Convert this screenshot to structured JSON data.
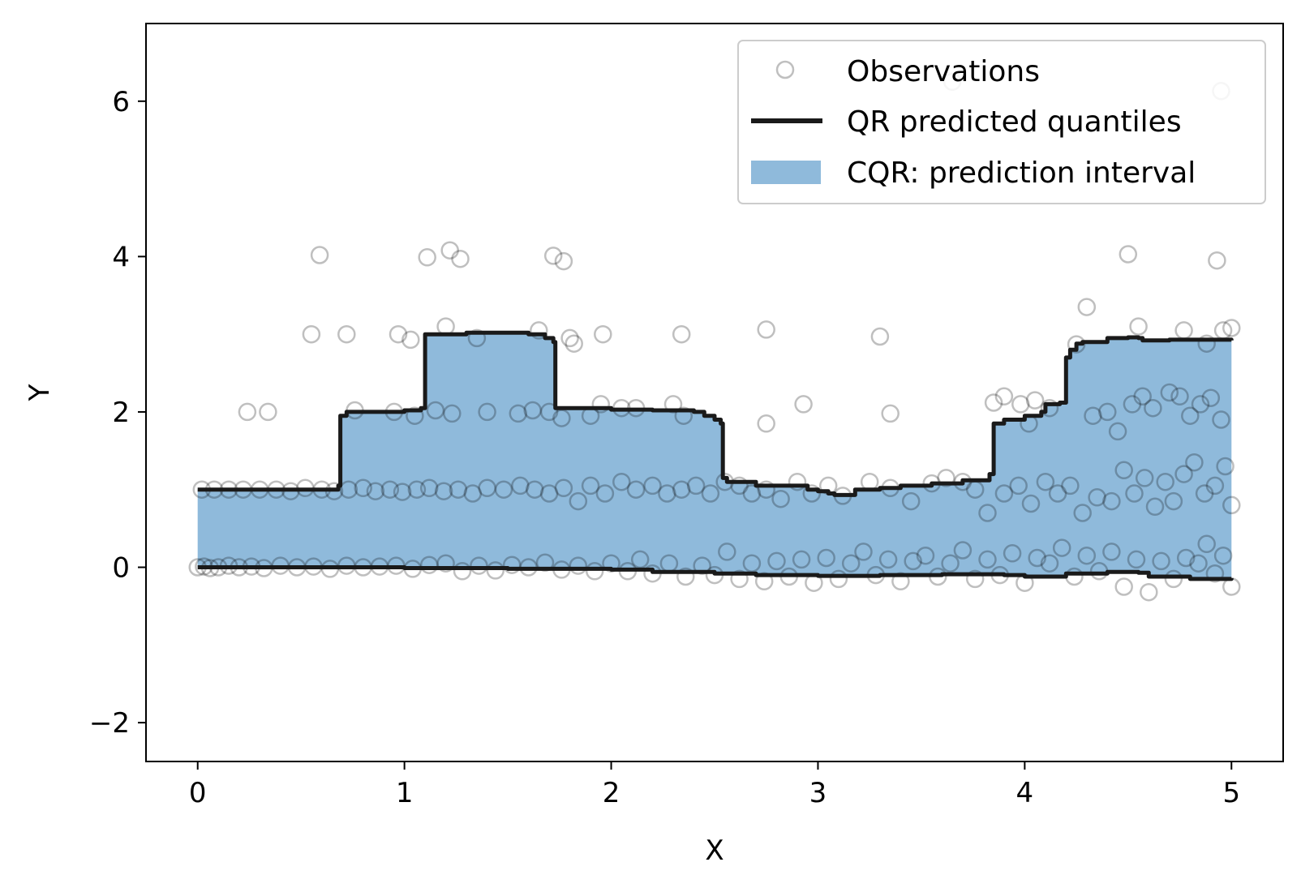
{
  "chart_data": {
    "type": "scatter",
    "xlabel": "X",
    "ylabel": "Y",
    "xlim": [
      -0.25,
      5.25
    ],
    "ylim": [
      -2.5,
      7.0
    ],
    "xticks": [
      0,
      1,
      2,
      3,
      4,
      5
    ],
    "yticks": [
      -2,
      0,
      2,
      4,
      6
    ],
    "xtick_labels": [
      "0",
      "1",
      "2",
      "3",
      "4",
      "5"
    ],
    "ytick_labels": [
      "−2",
      "0",
      "2",
      "4",
      "6"
    ],
    "grid": false,
    "legend_position": "top-right",
    "legend": [
      {
        "label": "Observations",
        "kind": "marker"
      },
      {
        "label": "QR predicted quantiles",
        "kind": "line"
      },
      {
        "label": "CQR: prediction interval",
        "kind": "patch"
      }
    ],
    "colors": {
      "interval": "#8fbadb",
      "line": "#1a1a1a",
      "marker": "#000000"
    },
    "upper_quantile": [
      [
        0,
        1.0
      ],
      [
        0.68,
        1.05
      ],
      [
        0.69,
        1.95
      ],
      [
        0.72,
        2.0
      ],
      [
        1.0,
        2.02
      ],
      [
        1.08,
        2.05
      ],
      [
        1.1,
        3.0
      ],
      [
        1.3,
        3.02
      ],
      [
        1.6,
        3.0
      ],
      [
        1.68,
        2.95
      ],
      [
        1.72,
        2.9
      ],
      [
        1.73,
        2.05
      ],
      [
        2.0,
        2.03
      ],
      [
        2.2,
        2.02
      ],
      [
        2.4,
        2.0
      ],
      [
        2.45,
        1.95
      ],
      [
        2.5,
        1.9
      ],
      [
        2.53,
        1.85
      ],
      [
        2.54,
        1.15
      ],
      [
        2.56,
        1.1
      ],
      [
        2.7,
        1.05
      ],
      [
        2.85,
        1.05
      ],
      [
        2.95,
        1.0
      ],
      [
        3.0,
        0.98
      ],
      [
        3.05,
        0.95
      ],
      [
        3.08,
        0.93
      ],
      [
        3.15,
        0.93
      ],
      [
        3.18,
        1.0
      ],
      [
        3.3,
        1.02
      ],
      [
        3.4,
        1.05
      ],
      [
        3.55,
        1.08
      ],
      [
        3.7,
        1.12
      ],
      [
        3.8,
        1.12
      ],
      [
        3.83,
        1.2
      ],
      [
        3.85,
        1.85
      ],
      [
        3.9,
        1.9
      ],
      [
        4.0,
        1.95
      ],
      [
        4.08,
        2.0
      ],
      [
        4.1,
        2.1
      ],
      [
        4.17,
        2.12
      ],
      [
        4.2,
        2.7
      ],
      [
        4.22,
        2.8
      ],
      [
        4.25,
        2.88
      ],
      [
        4.28,
        2.9
      ],
      [
        4.4,
        2.95
      ],
      [
        4.5,
        2.96
      ],
      [
        4.55,
        2.95
      ],
      [
        4.57,
        2.92
      ],
      [
        4.7,
        2.93
      ],
      [
        5.0,
        2.92
      ]
    ],
    "lower_quantile": [
      [
        0,
        0.0
      ],
      [
        0.5,
        0.0
      ],
      [
        1.0,
        -0.01
      ],
      [
        1.5,
        -0.02
      ],
      [
        2.0,
        -0.03
      ],
      [
        2.2,
        -0.06
      ],
      [
        2.5,
        -0.08
      ],
      [
        2.7,
        -0.1
      ],
      [
        3.0,
        -0.11
      ],
      [
        3.3,
        -0.1
      ],
      [
        3.6,
        -0.09
      ],
      [
        3.9,
        -0.1
      ],
      [
        4.0,
        -0.12
      ],
      [
        4.2,
        -0.08
      ],
      [
        4.4,
        -0.06
      ],
      [
        4.55,
        -0.07
      ],
      [
        4.6,
        -0.12
      ],
      [
        4.8,
        -0.15
      ],
      [
        5.0,
        -0.14
      ]
    ],
    "observations": [
      [
        0.59,
        4.02
      ],
      [
        1.11,
        3.99
      ],
      [
        1.22,
        4.08
      ],
      [
        1.27,
        3.97
      ],
      [
        1.72,
        4.01
      ],
      [
        1.77,
        3.94
      ],
      [
        4.5,
        4.03
      ],
      [
        4.93,
        3.95
      ],
      [
        3.65,
        6.25
      ],
      [
        4.95,
        6.13
      ],
      [
        0.55,
        3.0
      ],
      [
        0.72,
        3.0
      ],
      [
        0.97,
        3.0
      ],
      [
        1.03,
        2.93
      ],
      [
        1.2,
        3.1
      ],
      [
        1.35,
        2.95
      ],
      [
        1.65,
        3.05
      ],
      [
        1.8,
        2.95
      ],
      [
        1.82,
        2.88
      ],
      [
        1.96,
        3.0
      ],
      [
        2.34,
        3.0
      ],
      [
        2.75,
        3.06
      ],
      [
        3.3,
        2.97
      ],
      [
        4.25,
        2.87
      ],
      [
        4.3,
        3.35
      ],
      [
        4.55,
        3.1
      ],
      [
        4.77,
        3.05
      ],
      [
        4.96,
        3.05
      ],
      [
        5.0,
        3.08
      ],
      [
        4.88,
        2.88
      ],
      [
        0.24,
        2.0
      ],
      [
        0.34,
        2.0
      ],
      [
        0.76,
        2.02
      ],
      [
        0.95,
        2.0
      ],
      [
        1.05,
        1.95
      ],
      [
        1.15,
        2.02
      ],
      [
        1.23,
        1.98
      ],
      [
        1.4,
        2.0
      ],
      [
        1.55,
        1.98
      ],
      [
        1.62,
        2.02
      ],
      [
        1.7,
        2.0
      ],
      [
        1.76,
        1.92
      ],
      [
        1.9,
        1.95
      ],
      [
        1.95,
        2.1
      ],
      [
        2.05,
        2.05
      ],
      [
        2.12,
        2.05
      ],
      [
        2.3,
        2.1
      ],
      [
        2.35,
        1.95
      ],
      [
        2.75,
        1.85
      ],
      [
        2.93,
        2.1
      ],
      [
        3.35,
        1.98
      ],
      [
        3.85,
        2.12
      ],
      [
        3.9,
        2.2
      ],
      [
        3.98,
        2.1
      ],
      [
        4.05,
        2.15
      ],
      [
        4.02,
        1.85
      ],
      [
        4.12,
        2.05
      ],
      [
        4.33,
        1.95
      ],
      [
        4.4,
        2.0
      ],
      [
        4.45,
        1.75
      ],
      [
        4.52,
        2.1
      ],
      [
        4.57,
        2.2
      ],
      [
        4.62,
        2.05
      ],
      [
        4.7,
        2.25
      ],
      [
        4.75,
        2.2
      ],
      [
        4.8,
        1.95
      ],
      [
        4.85,
        2.1
      ],
      [
        4.9,
        2.18
      ],
      [
        4.95,
        1.9
      ],
      [
        0.02,
        1.0
      ],
      [
        0.08,
        1.0
      ],
      [
        0.15,
        1.0
      ],
      [
        0.22,
        1.0
      ],
      [
        0.3,
        1.0
      ],
      [
        0.38,
        1.0
      ],
      [
        0.45,
        0.98
      ],
      [
        0.52,
        1.02
      ],
      [
        0.6,
        1.0
      ],
      [
        0.66,
        0.98
      ],
      [
        0.73,
        1.0
      ],
      [
        0.8,
        1.02
      ],
      [
        0.86,
        0.98
      ],
      [
        0.93,
        1.0
      ],
      [
        0.99,
        0.97
      ],
      [
        1.06,
        1.0
      ],
      [
        1.12,
        1.02
      ],
      [
        1.19,
        0.98
      ],
      [
        1.26,
        1.0
      ],
      [
        1.33,
        0.95
      ],
      [
        1.4,
        1.02
      ],
      [
        1.48,
        1.0
      ],
      [
        1.56,
        1.05
      ],
      [
        1.63,
        1.0
      ],
      [
        1.7,
        0.95
      ],
      [
        1.77,
        1.02
      ],
      [
        1.84,
        0.85
      ],
      [
        1.9,
        1.05
      ],
      [
        1.97,
        0.95
      ],
      [
        2.05,
        1.1
      ],
      [
        2.12,
        1.0
      ],
      [
        2.2,
        1.05
      ],
      [
        2.27,
        0.95
      ],
      [
        2.34,
        1.0
      ],
      [
        2.41,
        1.05
      ],
      [
        2.48,
        0.95
      ],
      [
        2.55,
        1.1
      ],
      [
        2.62,
        1.05
      ],
      [
        2.68,
        0.95
      ],
      [
        2.75,
        1.0
      ],
      [
        2.82,
        0.88
      ],
      [
        2.9,
        1.1
      ],
      [
        2.97,
        0.95
      ],
      [
        3.05,
        1.05
      ],
      [
        3.12,
        0.92
      ],
      [
        3.25,
        1.1
      ],
      [
        3.35,
        1.02
      ],
      [
        3.45,
        0.85
      ],
      [
        3.55,
        1.08
      ],
      [
        3.62,
        1.15
      ],
      [
        3.7,
        1.1
      ],
      [
        3.76,
        1.0
      ],
      [
        3.82,
        0.7
      ],
      [
        3.9,
        0.95
      ],
      [
        3.97,
        1.05
      ],
      [
        4.03,
        0.82
      ],
      [
        4.1,
        1.1
      ],
      [
        4.16,
        0.95
      ],
      [
        4.22,
        1.05
      ],
      [
        4.28,
        0.7
      ],
      [
        4.35,
        0.9
      ],
      [
        4.42,
        0.85
      ],
      [
        4.48,
        1.25
      ],
      [
        4.53,
        0.95
      ],
      [
        4.58,
        1.15
      ],
      [
        4.63,
        0.78
      ],
      [
        4.68,
        1.1
      ],
      [
        4.72,
        0.85
      ],
      [
        4.77,
        1.2
      ],
      [
        4.82,
        1.35
      ],
      [
        4.87,
        0.95
      ],
      [
        4.92,
        1.05
      ],
      [
        4.97,
        1.3
      ],
      [
        5.0,
        0.8
      ],
      [
        0.0,
        0.0
      ],
      [
        0.03,
        0.01
      ],
      [
        0.06,
        -0.01
      ],
      [
        0.1,
        0.0
      ],
      [
        0.15,
        0.02
      ],
      [
        0.2,
        0.0
      ],
      [
        0.26,
        0.01
      ],
      [
        0.32,
        -0.01
      ],
      [
        0.4,
        0.02
      ],
      [
        0.48,
        0.0
      ],
      [
        0.56,
        0.01
      ],
      [
        0.64,
        -0.02
      ],
      [
        0.72,
        0.02
      ],
      [
        0.8,
        0.0
      ],
      [
        0.88,
        0.01
      ],
      [
        0.96,
        0.02
      ],
      [
        1.04,
        -0.02
      ],
      [
        1.12,
        0.03
      ],
      [
        1.2,
        0.05
      ],
      [
        1.28,
        -0.05
      ],
      [
        1.36,
        0.02
      ],
      [
        1.44,
        -0.04
      ],
      [
        1.52,
        0.03
      ],
      [
        1.6,
        0.0
      ],
      [
        1.68,
        0.06
      ],
      [
        1.76,
        -0.03
      ],
      [
        1.84,
        0.02
      ],
      [
        1.92,
        -0.05
      ],
      [
        2.0,
        0.05
      ],
      [
        2.08,
        -0.05
      ],
      [
        2.14,
        0.1
      ],
      [
        2.2,
        -0.08
      ],
      [
        2.28,
        0.05
      ],
      [
        2.36,
        -0.12
      ],
      [
        2.44,
        0.02
      ],
      [
        2.5,
        -0.1
      ],
      [
        2.56,
        0.2
      ],
      [
        2.62,
        -0.15
      ],
      [
        2.68,
        0.05
      ],
      [
        2.74,
        -0.18
      ],
      [
        2.8,
        0.08
      ],
      [
        2.86,
        -0.12
      ],
      [
        2.92,
        0.1
      ],
      [
        2.98,
        -0.2
      ],
      [
        3.04,
        0.12
      ],
      [
        3.1,
        -0.15
      ],
      [
        3.16,
        0.05
      ],
      [
        3.22,
        0.2
      ],
      [
        3.28,
        -0.1
      ],
      [
        3.34,
        0.1
      ],
      [
        3.4,
        -0.18
      ],
      [
        3.46,
        0.08
      ],
      [
        3.52,
        0.15
      ],
      [
        3.58,
        -0.12
      ],
      [
        3.64,
        0.05
      ],
      [
        3.7,
        0.22
      ],
      [
        3.76,
        -0.15
      ],
      [
        3.82,
        0.1
      ],
      [
        3.88,
        -0.1
      ],
      [
        3.94,
        0.18
      ],
      [
        4.0,
        -0.2
      ],
      [
        4.06,
        0.12
      ],
      [
        4.12,
        0.05
      ],
      [
        4.18,
        0.25
      ],
      [
        4.24,
        -0.12
      ],
      [
        4.3,
        0.15
      ],
      [
        4.36,
        -0.05
      ],
      [
        4.42,
        0.2
      ],
      [
        4.48,
        -0.25
      ],
      [
        4.54,
        0.1
      ],
      [
        4.6,
        -0.32
      ],
      [
        4.66,
        0.08
      ],
      [
        4.72,
        -0.15
      ],
      [
        4.78,
        0.12
      ],
      [
        4.84,
        0.05
      ],
      [
        4.88,
        0.3
      ],
      [
        4.92,
        -0.08
      ],
      [
        4.96,
        0.15
      ],
      [
        5.0,
        -0.25
      ]
    ]
  }
}
